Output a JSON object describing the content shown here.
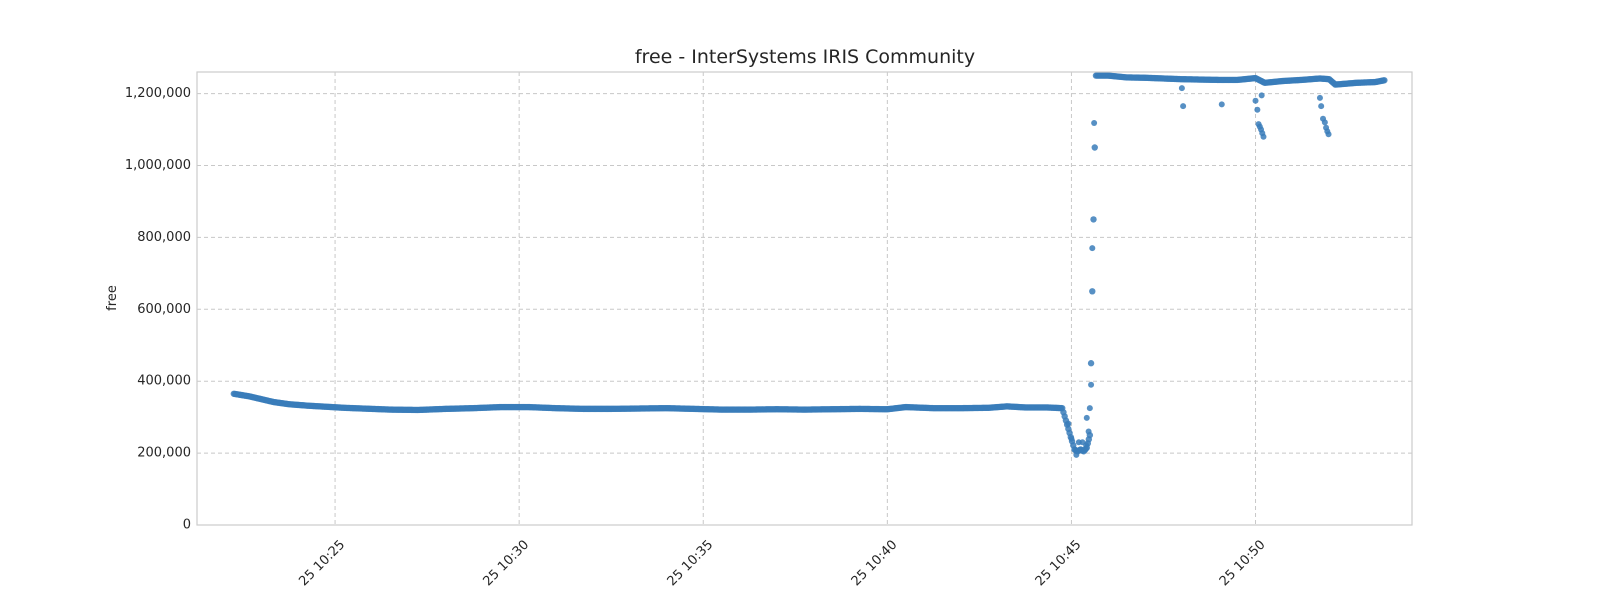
{
  "chart_data": {
    "type": "scatter",
    "title": "free - InterSystems IRIS Community",
    "xlabel": "",
    "ylabel": "free",
    "xlim": [
      "2024-01-25T10:21:15",
      "2024-01-25T10:54:15"
    ],
    "ylim": [
      0,
      1260000
    ],
    "x_ticks": [
      "25 10:25",
      "25 10:30",
      "25 10:35",
      "25 10:40",
      "25 10:45",
      "25 10:50"
    ],
    "x_tick_values": [
      "2024-01-25T10:25:00",
      "2024-01-25T10:30:00",
      "2024-01-25T10:35:00",
      "2024-01-25T10:40:00",
      "2024-01-25T10:45:00",
      "2024-01-25T10:50:00"
    ],
    "y_ticks": [
      "0",
      "200,000",
      "400,000",
      "600,000",
      "800,000",
      "1,000,000",
      "1,200,000"
    ],
    "y_tick_values": [
      0,
      200000,
      400000,
      600000,
      800000,
      1000000,
      1200000
    ],
    "grid": true,
    "legend": "none",
    "marker_color": "#3a7dba",
    "series": [
      {
        "points": [
          [
            "2024-01-25T10:22:15",
            365000
          ],
          [
            "2024-01-25T10:22:40",
            358000
          ],
          [
            "2024-01-25T10:23:00",
            350000
          ],
          [
            "2024-01-25T10:23:20",
            342000
          ],
          [
            "2024-01-25T10:23:45",
            336000
          ],
          [
            "2024-01-25T10:24:15",
            332000
          ],
          [
            "2024-01-25T10:24:45",
            329000
          ],
          [
            "2024-01-25T10:25:15",
            326000
          ],
          [
            "2024-01-25T10:25:45",
            324000
          ],
          [
            "2024-01-25T10:26:30",
            321000
          ],
          [
            "2024-01-25T10:27:15",
            320000
          ],
          [
            "2024-01-25T10:28:00",
            323000
          ],
          [
            "2024-01-25T10:28:45",
            325000
          ],
          [
            "2024-01-25T10:29:30",
            328000
          ],
          [
            "2024-01-25T10:30:15",
            328000
          ],
          [
            "2024-01-25T10:31:00",
            325000
          ],
          [
            "2024-01-25T10:31:45",
            323000
          ],
          [
            "2024-01-25T10:32:30",
            323000
          ],
          [
            "2024-01-25T10:33:15",
            324000
          ],
          [
            "2024-01-25T10:34:00",
            325000
          ],
          [
            "2024-01-25T10:34:45",
            323000
          ],
          [
            "2024-01-25T10:35:30",
            321000
          ],
          [
            "2024-01-25T10:36:15",
            321000
          ],
          [
            "2024-01-25T10:37:00",
            322000
          ],
          [
            "2024-01-25T10:37:45",
            321000
          ],
          [
            "2024-01-25T10:38:30",
            322000
          ],
          [
            "2024-01-25T10:39:15",
            323000
          ],
          [
            "2024-01-25T10:40:00",
            322000
          ],
          [
            "2024-01-25T10:40:30",
            328000
          ],
          [
            "2024-01-25T10:41:15",
            325000
          ],
          [
            "2024-01-25T10:42:00",
            325000
          ],
          [
            "2024-01-25T10:42:45",
            326000
          ],
          [
            "2024-01-25T10:43:15",
            330000
          ],
          [
            "2024-01-25T10:43:45",
            327000
          ],
          [
            "2024-01-25T10:44:20",
            327000
          ],
          [
            "2024-01-25T10:44:45",
            325000
          ],
          [
            "2024-01-25T10:45:05",
            210000
          ],
          [
            "2024-01-25T10:45:10",
            205000
          ],
          [
            "2024-01-25T10:45:15",
            210000
          ],
          [
            "2024-01-25T10:45:20",
            205000
          ],
          [
            "2024-01-25T10:45:25",
            215000
          ],
          [
            "2024-01-25T10:45:30",
            250000
          ],
          [
            "2024-01-25T10:45:40",
            1250000
          ],
          [
            "2024-01-25T10:46:00",
            1250000
          ],
          [
            "2024-01-25T10:46:30",
            1245000
          ],
          [
            "2024-01-25T10:47:00",
            1244000
          ],
          [
            "2024-01-25T10:47:30",
            1242000
          ],
          [
            "2024-01-25T10:48:00",
            1240000
          ],
          [
            "2024-01-25T10:48:30",
            1239000
          ],
          [
            "2024-01-25T10:49:00",
            1238000
          ],
          [
            "2024-01-25T10:49:30",
            1238000
          ],
          [
            "2024-01-25T10:50:00",
            1243000
          ],
          [
            "2024-01-25T10:50:15",
            1230000
          ],
          [
            "2024-01-25T10:50:45",
            1235000
          ],
          [
            "2024-01-25T10:51:15",
            1238000
          ],
          [
            "2024-01-25T10:51:45",
            1242000
          ],
          [
            "2024-01-25T10:52:00",
            1240000
          ],
          [
            "2024-01-25T10:52:10",
            1225000
          ],
          [
            "2024-01-25T10:52:45",
            1230000
          ],
          [
            "2024-01-25T10:53:15",
            1232000
          ],
          [
            "2024-01-25T10:53:30",
            1237000
          ]
        ],
        "scattered_points": [
          [
            "2024-01-25T10:44:55",
            282000
          ],
          [
            "2024-01-25T10:45:00",
            240000
          ],
          [
            "2024-01-25T10:45:08",
            195000
          ],
          [
            "2024-01-25T10:45:12",
            230000
          ],
          [
            "2024-01-25T10:45:18",
            230000
          ],
          [
            "2024-01-25T10:45:24",
            222000
          ],
          [
            "2024-01-25T10:45:25",
            298000
          ],
          [
            "2024-01-25T10:45:28",
            260000
          ],
          [
            "2024-01-25T10:45:30",
            325000
          ],
          [
            "2024-01-25T10:45:32",
            390000
          ],
          [
            "2024-01-25T10:45:34",
            770000
          ],
          [
            "2024-01-25T10:45:37",
            1118000
          ],
          [
            "2024-01-25T10:48:00",
            1215000
          ],
          [
            "2024-01-25T10:48:02",
            1165000
          ],
          [
            "2024-01-25T10:49:05",
            1170000
          ],
          [
            "2024-01-25T10:50:00",
            1180000
          ],
          [
            "2024-01-25T10:50:03",
            1155000
          ],
          [
            "2024-01-25T10:50:05",
            1115000
          ],
          [
            "2024-01-25T10:50:07",
            1108000
          ],
          [
            "2024-01-25T10:50:09",
            1100000
          ],
          [
            "2024-01-25T10:50:11",
            1090000
          ],
          [
            "2024-01-25T10:50:13",
            1080000
          ],
          [
            "2024-01-25T10:50:10",
            1195000
          ],
          [
            "2024-01-25T10:51:45",
            1188000
          ],
          [
            "2024-01-25T10:51:47",
            1165000
          ],
          [
            "2024-01-25T10:51:50",
            1130000
          ],
          [
            "2024-01-25T10:51:53",
            1120000
          ],
          [
            "2024-01-25T10:51:55",
            1105000
          ],
          [
            "2024-01-25T10:51:57",
            1095000
          ],
          [
            "2024-01-25T10:51:59",
            1087000
          ]
        ]
      }
    ]
  }
}
